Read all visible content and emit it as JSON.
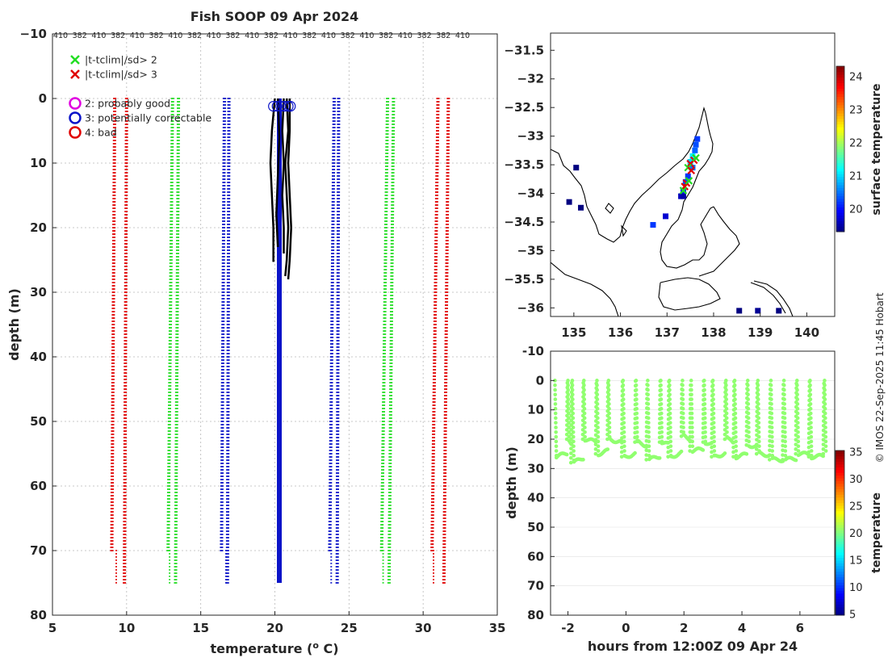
{
  "figure": {
    "title": "Fish SOOP 09 Apr 2024",
    "credit": "© IMOS 22-Sep-2025 11:45 Hobart",
    "colors": {
      "red": "#e00000",
      "green": "#22dd22",
      "blue": "#0b14c8",
      "black": "#000000",
      "magenta": "#e000e0",
      "grid": "#b8b8b8"
    }
  },
  "chart_data": [
    {
      "id": "profiles",
      "type": "line",
      "title": "Fish SOOP 09 Apr 2024",
      "xlabel": "temperature (°C)",
      "ylabel": "depth (m)",
      "xlim": [
        5,
        35
      ],
      "ylim": [
        80,
        -10
      ],
      "xticks": [
        5,
        10,
        15,
        20,
        25,
        30,
        35
      ],
      "yticks": [
        -10,
        0,
        10,
        20,
        30,
        40,
        50,
        60,
        70,
        80
      ],
      "grid": true,
      "top_tick_labels": [
        "410",
        "382",
        "410",
        "382",
        "410",
        "382",
        "410",
        "382",
        "410",
        "382",
        "410",
        "382",
        "410",
        "382",
        "410",
        "382",
        "410",
        "382",
        "410",
        "382",
        "382",
        "410"
      ],
      "legend": {
        "placement": "top-left",
        "entries": [
          {
            "marker": "x",
            "color": "#22dd22",
            "label": "|t-tclim|/sd> 2"
          },
          {
            "marker": "x",
            "color": "#e00000",
            "label": "|t-tclim|/sd> 3"
          },
          {
            "marker": "o",
            "color": "#e000e0",
            "label": "2: probably good"
          },
          {
            "marker": "o",
            "color": "#0b14c8",
            "label": "3: potentially correctable"
          },
          {
            "marker": "o",
            "color": "#e00000",
            "label": "4: bad"
          }
        ]
      },
      "series": [
        {
          "name": "clim-3sd-low",
          "color": "#e00000",
          "style": "dotted",
          "depth": [
            0,
            70
          ],
          "temp": [
            9.2,
            9.0
          ],
          "depth_ext": [
            70,
            75
          ],
          "temp_ext": [
            9.3,
            9.3
          ]
        },
        {
          "name": "clim-3sd-low-b",
          "color": "#e00000",
          "style": "dotted",
          "depth": [
            0,
            75
          ],
          "temp": [
            10.0,
            9.85
          ]
        },
        {
          "name": "clim-2sd-low",
          "color": "#22dd22",
          "style": "dotted",
          "depth": [
            0,
            70
          ],
          "temp": [
            13.1,
            12.8
          ],
          "depth_ext": [
            70,
            75
          ],
          "temp_ext": [
            12.9,
            12.9
          ]
        },
        {
          "name": "clim-2sd-low-b",
          "color": "#22dd22",
          "style": "dotted",
          "depth": [
            0,
            75
          ],
          "temp": [
            13.5,
            13.3
          ]
        },
        {
          "name": "clim-1sd-low",
          "color": "#0b14c8",
          "style": "dotted",
          "depth": [
            0,
            70
          ],
          "temp": [
            16.6,
            16.4
          ],
          "depth_ext": [
            70,
            75
          ],
          "temp_ext": [
            16.7,
            16.7
          ]
        },
        {
          "name": "clim-1sd-low-b",
          "color": "#0b14c8",
          "style": "dotted",
          "depth": [
            0,
            75
          ],
          "temp": [
            16.9,
            16.8
          ]
        },
        {
          "name": "clim-mean",
          "color": "#0b14c8",
          "style": "solid",
          "depth": [
            0,
            75
          ],
          "temp": [
            20.3,
            20.3
          ]
        },
        {
          "name": "clim-1sd-high",
          "color": "#0b14c8",
          "style": "dotted",
          "depth": [
            0,
            70
          ],
          "temp": [
            24.0,
            23.7
          ],
          "depth_ext": [
            70,
            75
          ],
          "temp_ext": [
            23.8,
            23.8
          ]
        },
        {
          "name": "clim-1sd-high-b",
          "color": "#0b14c8",
          "style": "dotted",
          "depth": [
            0,
            75
          ],
          "temp": [
            24.3,
            24.2
          ]
        },
        {
          "name": "clim-2sd-high",
          "color": "#22dd22",
          "style": "dotted",
          "depth": [
            0,
            70
          ],
          "temp": [
            27.6,
            27.2
          ],
          "depth_ext": [
            70,
            75
          ],
          "temp_ext": [
            27.3,
            27.3
          ]
        },
        {
          "name": "clim-2sd-high-b",
          "color": "#22dd22",
          "style": "dotted",
          "depth": [
            0,
            75
          ],
          "temp": [
            28.0,
            27.7
          ]
        },
        {
          "name": "clim-3sd-high",
          "color": "#e00000",
          "style": "dotted",
          "depth": [
            0,
            70
          ],
          "temp": [
            31.0,
            30.6
          ],
          "depth_ext": [
            70,
            75
          ],
          "temp_ext": [
            30.7,
            30.7
          ]
        },
        {
          "name": "clim-3sd-high-b",
          "color": "#e00000",
          "style": "dotted",
          "depth": [
            0,
            75
          ],
          "temp": [
            31.7,
            31.4
          ]
        }
      ],
      "observed": {
        "color": "#000000",
        "casts": [
          {
            "depth": [
              0,
              5,
              10,
              15,
              20,
              25.3
            ],
            "temp": [
              20.0,
              19.8,
              19.7,
              19.8,
              19.9,
              19.9
            ]
          },
          {
            "depth": [
              0,
              5,
              10,
              15,
              20,
              25,
              27.5
            ],
            "temp": [
              20.8,
              20.9,
              20.7,
              20.8,
              20.9,
              20.8,
              20.7
            ]
          },
          {
            "depth": [
              0,
              5,
              10,
              15,
              20,
              25,
              28
            ],
            "temp": [
              21.0,
              21.0,
              20.9,
              21.0,
              21.1,
              21.0,
              20.9
            ]
          },
          {
            "depth": [
              0,
              5,
              10,
              15,
              20,
              24
            ],
            "temp": [
              20.6,
              20.5,
              20.6,
              20.5,
              20.6,
              20.6
            ]
          },
          {
            "depth": [
              0,
              6,
              12,
              18,
              23
            ],
            "temp": [
              20.2,
              20.3,
              20.2,
              20.1,
              20.2
            ]
          }
        ],
        "flagged_circles": {
          "depth": [
            1.2,
            1.2,
            1.2,
            1.2,
            1.2,
            1.2
          ],
          "temp": [
            19.9,
            20.15,
            20.4,
            20.65,
            20.9,
            21.05
          ],
          "color": "#0b14c8"
        }
      }
    },
    {
      "id": "map",
      "type": "scatter",
      "xlabel": "",
      "ylabel": "",
      "xlim": [
        134.5,
        140.6
      ],
      "ylim": [
        -36.15,
        -31.2
      ],
      "xticks": [
        135,
        136,
        137,
        138,
        139,
        140
      ],
      "yticks": [
        -31.5,
        -32,
        -32.5,
        -33,
        -33.5,
        -34,
        -34.5,
        -35,
        -35.5,
        -36
      ],
      "colorbar": {
        "label": "surface temperature",
        "range": [
          19.3,
          24.3
        ],
        "ticks": [
          20,
          21,
          22,
          23,
          24
        ]
      },
      "points": [
        {
          "lon": 137.65,
          "lat": -33.05,
          "temp": 20.2
        },
        {
          "lon": 137.62,
          "lat": -33.15,
          "temp": 20.3
        },
        {
          "lon": 137.6,
          "lat": -33.25,
          "temp": 20.4
        },
        {
          "lon": 137.55,
          "lat": -33.35,
          "temp": 21.1
        },
        {
          "lon": 137.5,
          "lat": -33.45,
          "temp": 21.0
        },
        {
          "lon": 137.55,
          "lat": -33.55,
          "temp": 20.5
        },
        {
          "lon": 137.45,
          "lat": -33.7,
          "temp": 20.2
        },
        {
          "lon": 137.4,
          "lat": -33.8,
          "temp": 20.3
        },
        {
          "lon": 137.35,
          "lat": -33.95,
          "temp": 20.1
        },
        {
          "lon": 137.3,
          "lat": -34.05,
          "temp": 19.6
        },
        {
          "lon": 137.35,
          "lat": -34.05,
          "temp": 19.5
        },
        {
          "lon": 136.97,
          "lat": -34.4,
          "temp": 19.7
        },
        {
          "lon": 136.7,
          "lat": -34.55,
          "temp": 20.2
        },
        {
          "lon": 135.05,
          "lat": -33.55,
          "temp": 19.3
        },
        {
          "lon": 135.15,
          "lat": -34.25,
          "temp": 19.3
        },
        {
          "lon": 134.9,
          "lat": -34.15,
          "temp": 19.3
        },
        {
          "lon": 138.55,
          "lat": -36.05,
          "temp": 19.3
        },
        {
          "lon": 138.95,
          "lat": -36.05,
          "temp": 19.4
        },
        {
          "lon": 139.4,
          "lat": -36.05,
          "temp": 19.3
        }
      ],
      "flags": [
        {
          "lon": 137.58,
          "lat": -33.42,
          "color": "#e00000"
        },
        {
          "lon": 137.5,
          "lat": -33.48,
          "color": "#e00000"
        },
        {
          "lon": 137.45,
          "lat": -33.55,
          "color": "#22dd22"
        },
        {
          "lon": 137.62,
          "lat": -33.38,
          "color": "#22dd22"
        },
        {
          "lon": 137.42,
          "lat": -33.82,
          "color": "#e00000"
        },
        {
          "lon": 137.38,
          "lat": -33.88,
          "color": "#e00000"
        },
        {
          "lon": 137.47,
          "lat": -33.78,
          "color": "#22dd22"
        },
        {
          "lon": 137.35,
          "lat": -33.95,
          "color": "#22dd22"
        },
        {
          "lon": 137.52,
          "lat": -33.6,
          "color": "#e00000"
        }
      ]
    },
    {
      "id": "timeseries",
      "type": "scatter",
      "xlabel": "hours from 12:00Z 09 Apr 24",
      "ylabel": "depth (m)",
      "xlim": [
        -2.6,
        7.2
      ],
      "ylim": [
        80,
        -10
      ],
      "xticks": [
        -2,
        0,
        2,
        4,
        6
      ],
      "yticks": [
        -10,
        0,
        10,
        20,
        30,
        40,
        50,
        60,
        70,
        80
      ],
      "colorbar": {
        "label": "temperature",
        "range": [
          4.8,
          35.2
        ],
        "ticks": [
          5,
          10,
          15,
          20,
          25,
          30,
          35
        ]
      },
      "series_temp": 20.5,
      "casts": [
        {
          "t": -2.45,
          "bottom": 26
        },
        {
          "t": -2.0,
          "bottom": 20
        },
        {
          "t": -1.85,
          "bottom": 28
        },
        {
          "t": -1.45,
          "bottom": 20
        },
        {
          "t": -1.0,
          "bottom": 25
        },
        {
          "t": -0.6,
          "bottom": 20
        },
        {
          "t": -0.1,
          "bottom": 26
        },
        {
          "t": 0.35,
          "bottom": 21
        },
        {
          "t": 0.75,
          "bottom": 27
        },
        {
          "t": 1.2,
          "bottom": 21
        },
        {
          "t": 1.5,
          "bottom": 26
        },
        {
          "t": 1.95,
          "bottom": 19
        },
        {
          "t": 2.25,
          "bottom": 24
        },
        {
          "t": 2.7,
          "bottom": 21
        },
        {
          "t": 3.0,
          "bottom": 26
        },
        {
          "t": 3.45,
          "bottom": 20
        },
        {
          "t": 3.75,
          "bottom": 26
        },
        {
          "t": 4.2,
          "bottom": 22
        },
        {
          "t": 4.55,
          "bottom": 25
        },
        {
          "t": 5.0,
          "bottom": 27
        },
        {
          "t": 5.45,
          "bottom": 27
        },
        {
          "t": 5.9,
          "bottom": 25
        },
        {
          "t": 6.35,
          "bottom": 26
        },
        {
          "t": 6.85,
          "bottom": 25
        }
      ]
    }
  ]
}
